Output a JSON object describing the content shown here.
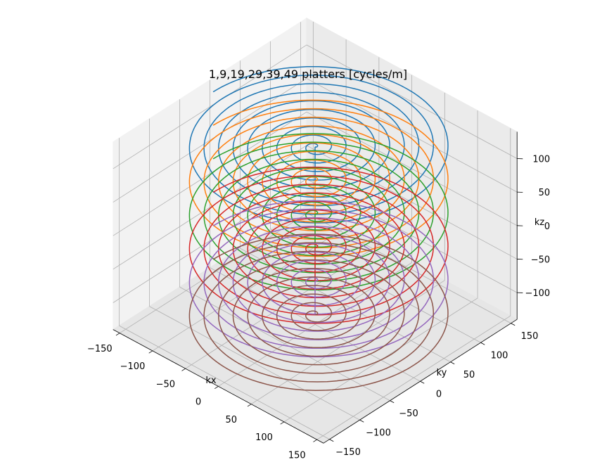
{
  "chart_data": {
    "type": "line",
    "projection": "3d",
    "title": "1,9,19,29,39,49 platters [cycles/m]",
    "xlabel": "kx",
    "ylabel": "ky",
    "zlabel": "kz",
    "xlim": [
      -160,
      160
    ],
    "ylim": [
      -160,
      160
    ],
    "zlim": [
      -140,
      140
    ],
    "xticks": [
      -150,
      -100,
      -50,
      0,
      50,
      100,
      150
    ],
    "yticks": [
      -150,
      -100,
      -50,
      0,
      50,
      100,
      150
    ],
    "zticks": [
      -100,
      -50,
      0,
      50,
      100
    ],
    "xtick_labels": [
      "−150",
      "−100",
      "−50",
      "0",
      "50",
      "100",
      "150"
    ],
    "ytick_labels": [
      "−150",
      "−100",
      "−50",
      "0",
      "50",
      "100",
      "150"
    ],
    "ztick_labels": [
      "−100",
      "−50",
      "0",
      "50",
      "100"
    ],
    "grid": true,
    "series": [
      {
        "color": "#1f77b4",
        "kz": 125,
        "turns": 9.5,
        "max_radius": 155
      },
      {
        "color": "#ff7f0e",
        "kz": 75,
        "turns": 9.5,
        "max_radius": 155
      },
      {
        "color": "#2ca02c",
        "kz": 25,
        "turns": 9.5,
        "max_radius": 155
      },
      {
        "color": "#d62728",
        "kz": -25,
        "turns": 9.5,
        "max_radius": 155
      },
      {
        "color": "#9467bd",
        "kz": -75,
        "turns": 9.5,
        "max_radius": 155
      },
      {
        "color": "#8c564b",
        "kz": -125,
        "turns": 9.5,
        "max_radius": 155
      }
    ]
  }
}
